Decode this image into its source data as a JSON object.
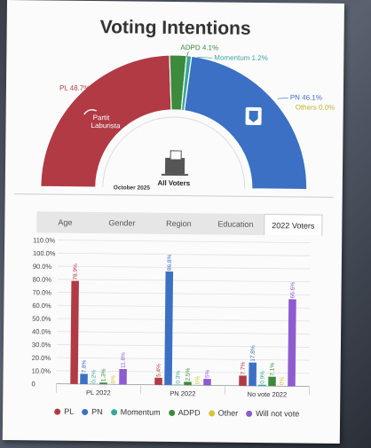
{
  "title": "Voting Intentions",
  "hemicycle": {
    "segments": [
      {
        "label": "PL",
        "value": 48.7,
        "display": "PL 48.7%",
        "color": "#b13a45"
      },
      {
        "label": "ADPD",
        "value": 4.1,
        "display": "ADPD 4.1%",
        "color": "#3c8a3c"
      },
      {
        "label": "Momentum",
        "value": 1.2,
        "display": "Momentum 1.2%",
        "color": "#3aa79a"
      },
      {
        "label": "PN",
        "value": 46.1,
        "display": "PN 46.1%",
        "color": "#3b70c4"
      },
      {
        "label": "Others",
        "value": 0.0,
        "display": "Others 0.0%",
        "color": "#d8c33a"
      }
    ],
    "inner_left_label": "October 2025",
    "center_label": "All Voters",
    "pl_logo_text": [
      "Partit",
      "Laburista"
    ]
  },
  "tabs": [
    {
      "label": "Age",
      "active": false
    },
    {
      "label": "Gender",
      "active": false
    },
    {
      "label": "Region",
      "active": false
    },
    {
      "label": "Education",
      "active": false
    },
    {
      "label": "2022 Voters",
      "active": true
    }
  ],
  "chart_data": {
    "type": "bar",
    "categories": [
      "PL 2022",
      "PN 2022",
      "No vote 2022"
    ],
    "series": [
      {
        "name": "PL",
        "color": "#b13a45",
        "values": [
          78.9,
          5.4,
          7.7
        ]
      },
      {
        "name": "PN",
        "color": "#3b70c4",
        "values": [
          7.8,
          86.8,
          17.8
        ]
      },
      {
        "name": "Momentum",
        "color": "#3aa79a",
        "values": [
          0.2,
          0.3,
          0.9
        ]
      },
      {
        "name": "ADPD",
        "color": "#3c8a3c",
        "values": [
          1.3,
          2.5,
          7.1
        ]
      },
      {
        "name": "Other",
        "color": "#d8c33a",
        "values": [
          0,
          0,
          0
        ]
      },
      {
        "name": "Will not vote",
        "color": "#8e5bd0",
        "values": [
          11.8,
          5,
          66.6
        ]
      }
    ],
    "bar_labels": [
      [
        "78.9%",
        "7.8%",
        "0.2%",
        "1.3%",
        "0%",
        "11.8%"
      ],
      [
        "5.4%",
        "86.8%",
        "0.3%",
        "2.5%",
        "0%",
        "5%"
      ],
      [
        "7.7%",
        "17.8%",
        "0.9%",
        "7.1%",
        "0%",
        "66.6%"
      ]
    ],
    "yticks": [
      "0",
      "10.0%",
      "20.0%",
      "30.0%",
      "40.0%",
      "50.0%",
      "60.0%",
      "70.0%",
      "80.0%",
      "90.0%",
      "100.0%",
      "110.0%"
    ],
    "ylim": [
      0,
      110
    ],
    "grid": true,
    "legend_position": "bottom"
  }
}
